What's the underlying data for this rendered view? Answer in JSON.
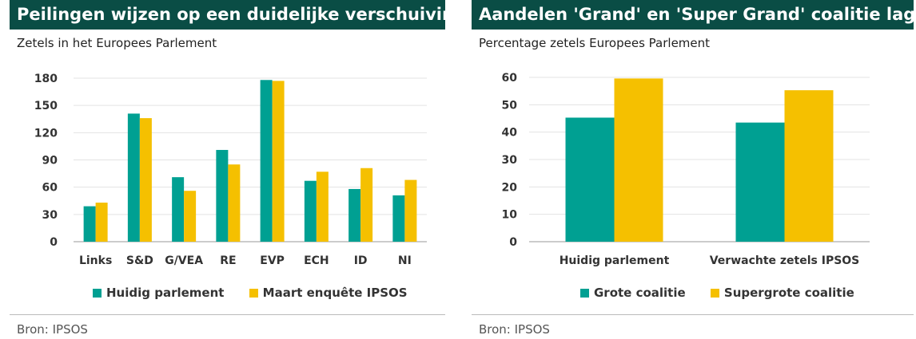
{
  "colors": {
    "teal": "#00a092",
    "yellow": "#f5c000",
    "title_bg": "#0a4d45"
  },
  "chart_data": [
    {
      "type": "bar",
      "title": "Peilingen wijzen op een duidelijke verschuiving",
      "subtitle": "Zetels in het Europees Parlement",
      "categories": [
        "Links",
        "S&D",
        "G/VEA",
        "RE",
        "EVP",
        "ECH",
        "ID",
        "NI"
      ],
      "series": [
        {
          "name": "Huidig parlement",
          "values": [
            39,
            141,
            71,
            101,
            178,
            67,
            58,
            51
          ]
        },
        {
          "name": "Maart enquête IPSOS",
          "values": [
            43,
            136,
            56,
            85,
            177,
            77,
            81,
            68
          ]
        }
      ],
      "ylim": [
        0,
        180
      ],
      "yticks": [
        0,
        30,
        60,
        90,
        120,
        150,
        180
      ],
      "source": "Bron: IPSOS"
    },
    {
      "type": "bar",
      "title": "Aandelen 'Grand' en 'Super Grand' coalitie lager",
      "subtitle": "Percentage zetels Europees Parlement",
      "categories": [
        "Huidig parlement",
        "Verwachte zetels IPSOS"
      ],
      "series": [
        {
          "name": "Grote coalitie",
          "values": [
            45.3,
            43.5
          ]
        },
        {
          "name": "Supergrote coalitie",
          "values": [
            59.6,
            55.3
          ]
        }
      ],
      "ylim": [
        0,
        60
      ],
      "yticks": [
        0,
        10,
        20,
        30,
        40,
        50,
        60
      ],
      "source": "Bron: IPSOS"
    }
  ]
}
